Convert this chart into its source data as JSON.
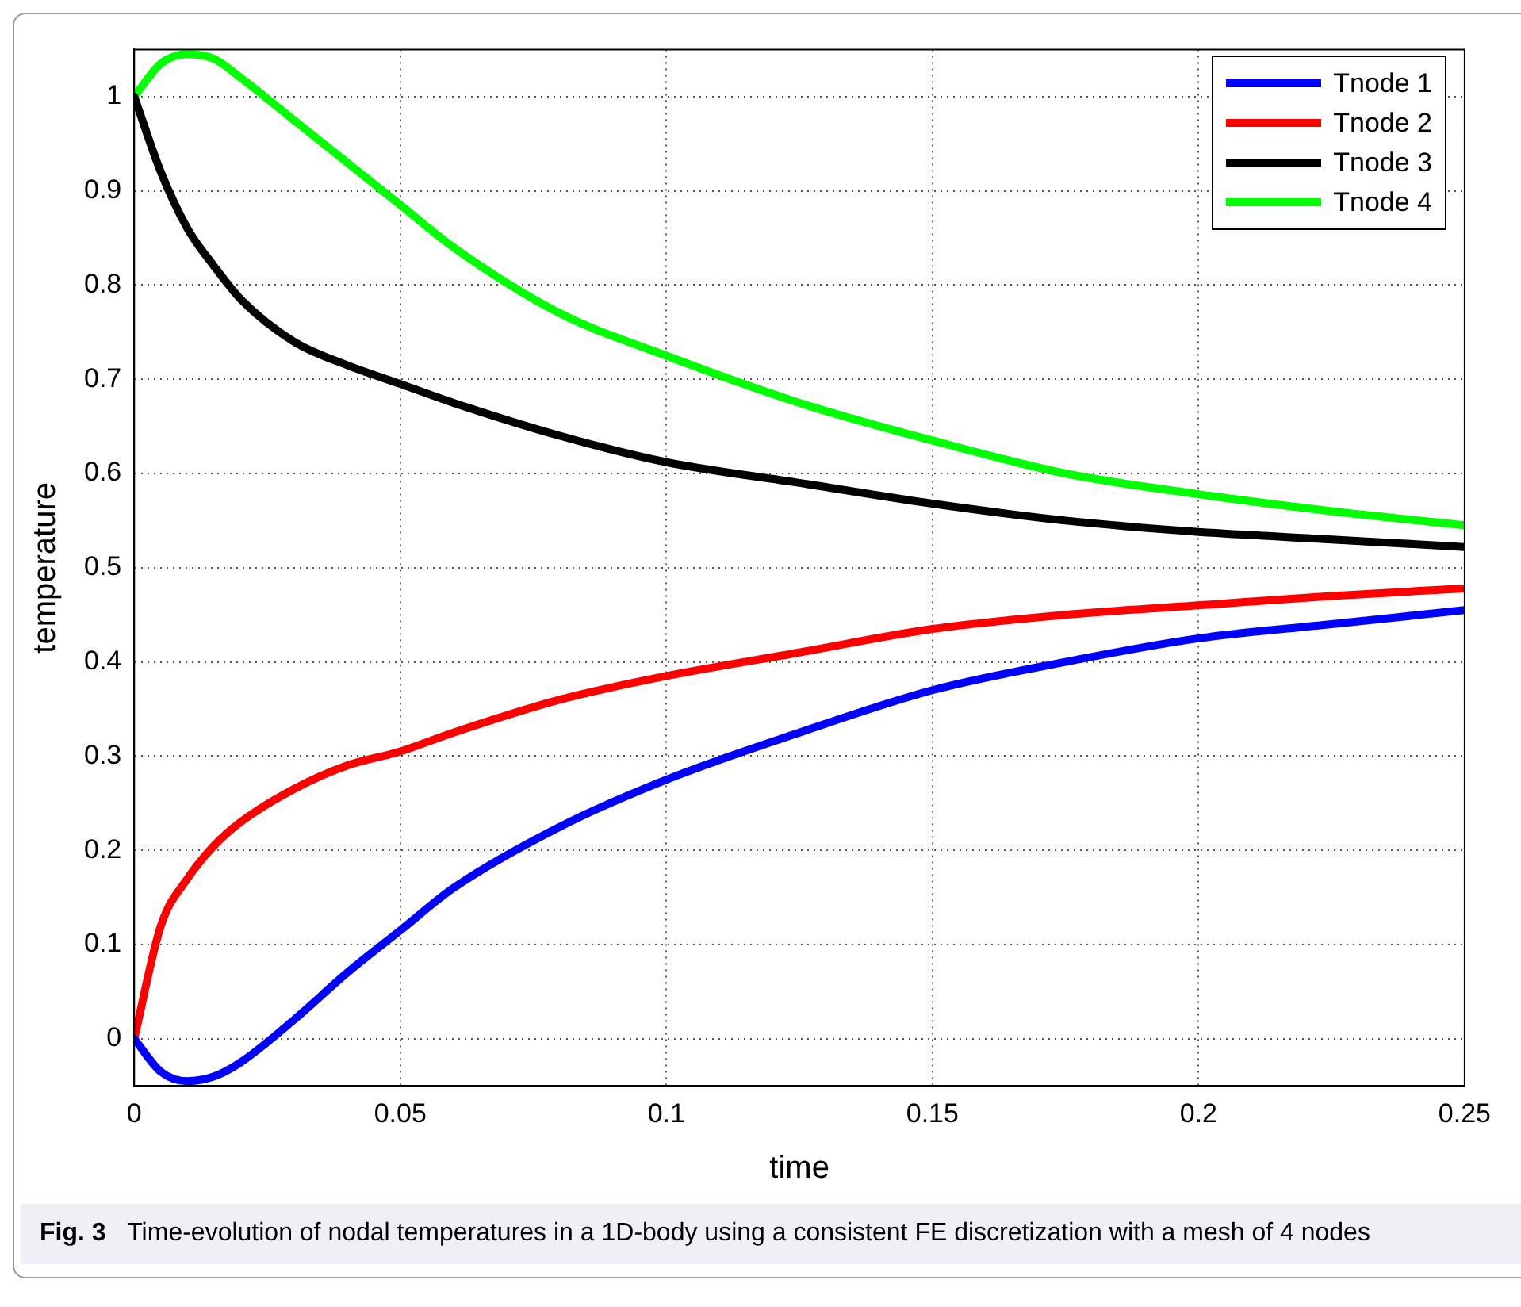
{
  "chart_data": {
    "type": "line",
    "xlabel": "time",
    "ylabel": "temperature",
    "annotations": [
      "Fig. 3",
      "Time-evolution of nodal temperatures in a 1D-body using a consistent FE discretization with a mesh of 4 nodes"
    ],
    "x": [
      0,
      0.005,
      0.01,
      0.015,
      0.02,
      0.03,
      0.04,
      0.05,
      0.06,
      0.08,
      0.1,
      0.125,
      0.15,
      0.175,
      0.2,
      0.225,
      0.25
    ],
    "series": [
      {
        "name": "Tnode 1",
        "color": "#0000ff",
        "values": [
          0,
          -0.035,
          -0.045,
          -0.04,
          -0.025,
          0.02,
          0.07,
          0.115,
          0.16,
          0.225,
          0.275,
          0.325,
          0.37,
          0.4,
          0.425,
          0.44,
          0.455
        ]
      },
      {
        "name": "Tnode 2",
        "color": "#ff0000",
        "values": [
          0,
          0.12,
          0.17,
          0.205,
          0.23,
          0.265,
          0.29,
          0.305,
          0.325,
          0.36,
          0.385,
          0.41,
          0.435,
          0.45,
          0.46,
          0.47,
          0.478
        ]
      },
      {
        "name": "Tnode 3",
        "color": "#000000",
        "values": [
          1,
          0.92,
          0.86,
          0.82,
          0.785,
          0.74,
          0.715,
          0.695,
          0.675,
          0.64,
          0.612,
          0.59,
          0.568,
          0.55,
          0.538,
          0.53,
          0.522
        ]
      },
      {
        "name": "Tnode 4",
        "color": "#00ff00",
        "values": [
          1,
          1.035,
          1.045,
          1.04,
          1.02,
          0.975,
          0.93,
          0.885,
          0.84,
          0.77,
          0.725,
          0.675,
          0.635,
          0.6,
          0.578,
          0.56,
          0.545
        ]
      }
    ],
    "xlim": [
      0,
      0.25
    ],
    "xticks": [
      0,
      0.05,
      0.1,
      0.15,
      0.2,
      0.25
    ],
    "ylim": [
      -0.05,
      1.05
    ],
    "yticks": [
      0,
      0.1,
      0.2,
      0.3,
      0.4,
      0.5,
      0.6,
      0.7,
      0.8,
      0.9,
      1
    ],
    "grid": true,
    "legend": "top right",
    "marker": "none",
    "line_style": "solid"
  }
}
